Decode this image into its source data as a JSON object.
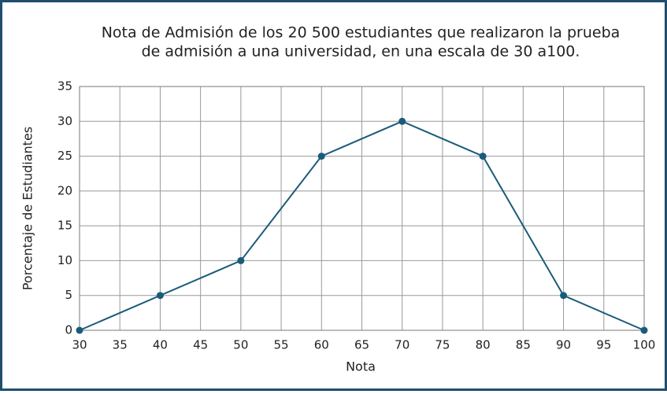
{
  "chart_data": {
    "type": "line",
    "title": [
      "Nota de Admisión de los 20 500 estudiantes que realizaron la prueba",
      "de admisión a una universidad, en una escala de 30 a100."
    ],
    "x_label": "Nota",
    "y_label": "Porcentaje de Estudiantes",
    "x": [
      30,
      40,
      50,
      60,
      70,
      80,
      90,
      100
    ],
    "series": [
      {
        "color": "#1a5b7a",
        "values": [
          0,
          5,
          10,
          25,
          30,
          25,
          5,
          0
        ]
      }
    ],
    "xlim": [
      30,
      100
    ],
    "xticks": [
      30,
      35,
      40,
      45,
      50,
      55,
      60,
      65,
      70,
      75,
      80,
      85,
      90,
      95,
      100
    ],
    "ylim": [
      0,
      35
    ],
    "yticks": [
      0,
      5,
      10,
      15,
      20,
      25,
      30,
      35
    ],
    "grid": true
  }
}
